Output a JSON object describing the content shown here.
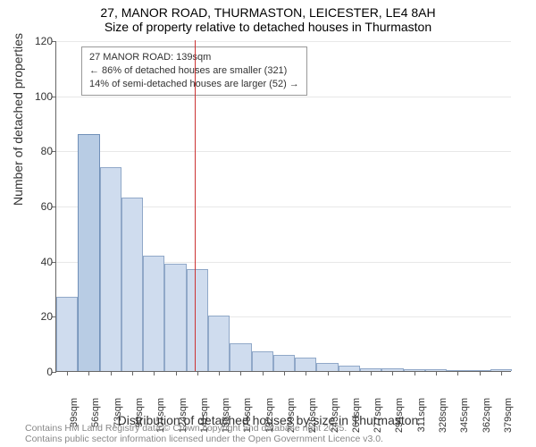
{
  "title_main": "27, MANOR ROAD, THURMASTON, LEICESTER, LE4 8AH",
  "title_sub": "Size of property relative to detached houses in Thurmaston",
  "y_axis_label": "Number of detached properties",
  "x_axis_label": "Distribution of detached houses by size in Thurmaston",
  "footer_line1": "Contains HM Land Registry data © Crown copyright and database right 2025.",
  "footer_line2": "Contains public sector information licensed under the Open Government Licence v3.0.",
  "chart": {
    "type": "histogram",
    "ylim": [
      0,
      120
    ],
    "ytick_step": 20,
    "background_color": "#ffffff",
    "grid_color": "#e8e8e8",
    "axis_color": "#666666",
    "bar_fill": "#cfdcee",
    "bar_stroke": "#90a8c8",
    "highlight_fill": "#b8cce4",
    "highlight_stroke": "#7090b8",
    "marker_color": "#cc3333",
    "marker_value": 139,
    "categories": [
      "39sqm",
      "56sqm",
      "73sqm",
      "90sqm",
      "107sqm",
      "124sqm",
      "141sqm",
      "158sqm",
      "175sqm",
      "192sqm",
      "209sqm",
      "226sqm",
      "243sqm",
      "260sqm",
      "277sqm",
      "294sqm",
      "311sqm",
      "328sqm",
      "345sqm",
      "362sqm",
      "379sqm"
    ],
    "category_values": [
      39,
      56,
      73,
      90,
      107,
      124,
      141,
      158,
      175,
      192,
      209,
      226,
      243,
      260,
      277,
      294,
      311,
      328,
      345,
      362,
      379
    ],
    "values": [
      27,
      86,
      74,
      63,
      42,
      39,
      37,
      20,
      10,
      7,
      6,
      5,
      3,
      2,
      1,
      1,
      0.5,
      0.5,
      0,
      0,
      0.5
    ],
    "highlight_index": 1,
    "title_fontsize": 14,
    "label_fontsize": 14,
    "tick_fontsize": 11
  },
  "annotation": {
    "line1": "27 MANOR ROAD: 139sqm",
    "line2": "← 86% of detached houses are smaller (321)",
    "line3": "14% of semi-detached houses are larger (52) →"
  }
}
